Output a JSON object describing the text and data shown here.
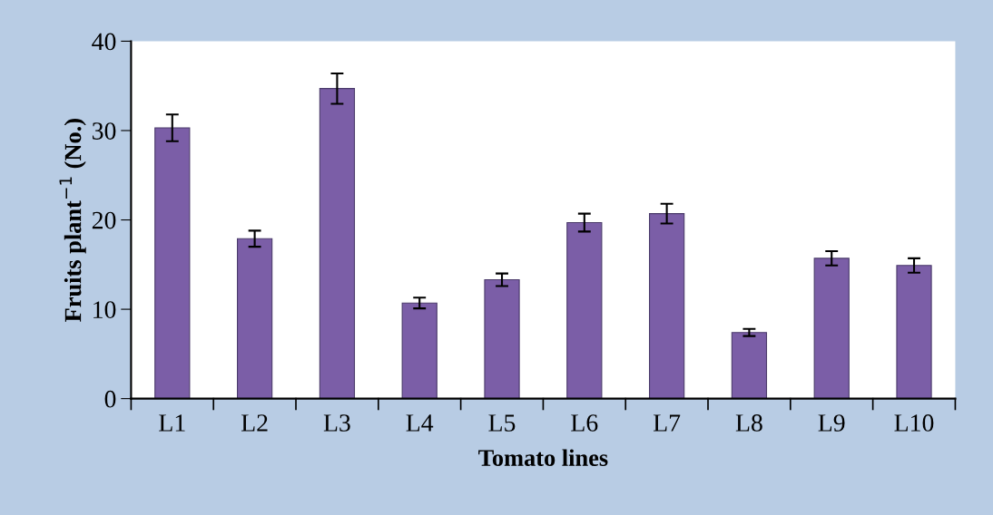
{
  "chart_data": {
    "type": "bar",
    "xlabel": "Tomato lines",
    "ylabel": "Fruits plant$^{−1}$ (No.)",
    "categories": [
      "L1",
      "L2",
      "L3",
      "L4",
      "L5",
      "L6",
      "L7",
      "L8",
      "L9",
      "L10"
    ],
    "values": [
      30.3,
      17.9,
      34.7,
      10.7,
      13.3,
      19.7,
      20.7,
      7.4,
      15.7,
      14.9
    ],
    "errors": [
      1.5,
      0.9,
      1.7,
      0.6,
      0.7,
      1.0,
      1.1,
      0.4,
      0.8,
      0.8
    ],
    "color": "#7b5ea7",
    "ylim": [
      0,
      40
    ],
    "yticks": [
      0,
      10,
      20,
      30,
      40
    ],
    "grid": false,
    "legend": false
  }
}
